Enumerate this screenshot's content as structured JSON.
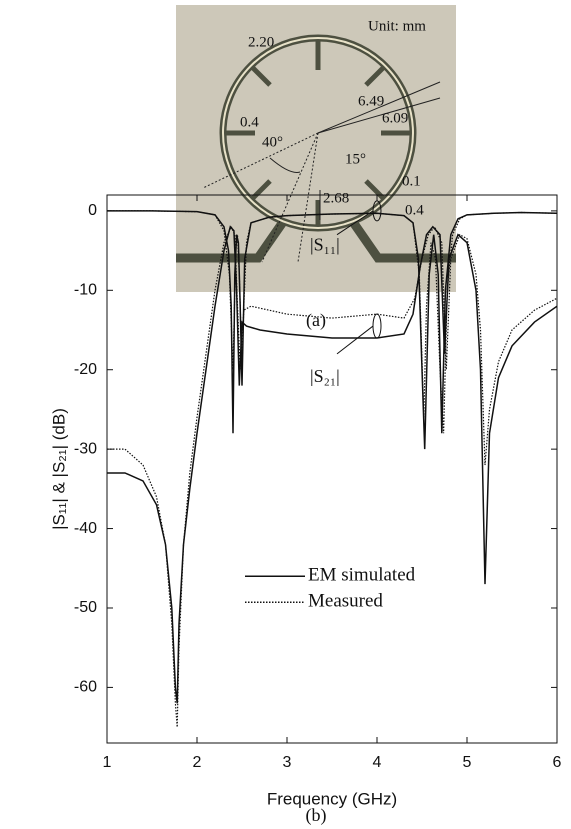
{
  "panel_a": {
    "unit": "Unit: mm",
    "labels": [
      "2.20",
      "0.4",
      "6.49",
      "6.09",
      "40°",
      "15°",
      "2.68",
      "0.1",
      "0.4"
    ],
    "caption": "(a)"
  },
  "chart_data": {
    "type": "line",
    "xlabel": "Frequency (GHz)",
    "ylabel": "|S₁₁| & |S₂₁| (dB)",
    "xlim": [
      1,
      6
    ],
    "ylim": [
      -67,
      2
    ],
    "xticks": [
      1,
      2,
      3,
      4,
      5,
      6
    ],
    "yticks": [
      0,
      -10,
      -20,
      -30,
      -40,
      -50,
      -60
    ],
    "legend": [
      {
        "label": "EM simulated",
        "style": "solid"
      },
      {
        "label": "Measured",
        "style": "dotted"
      }
    ],
    "annotations": [
      "|S₁₁|",
      "|S₂₁|"
    ],
    "series": [
      {
        "style": "solid",
        "color": "#111111",
        "x": [
          1,
          1.5,
          2,
          2.2,
          2.3,
          2.35,
          2.38,
          2.4,
          2.42,
          2.44,
          2.46,
          2.48,
          2.5,
          2.53,
          2.6,
          2.8,
          3,
          3.5,
          4,
          4.3,
          4.4,
          4.46,
          4.5,
          4.53,
          4.58,
          4.63,
          4.68,
          4.72,
          4.76,
          4.82,
          4.9,
          5,
          5.3,
          5.6,
          6
        ],
        "values": [
          0,
          0,
          -0.1,
          -0.5,
          -2,
          -5,
          -12,
          -28,
          -8,
          -3,
          -4,
          -12,
          -22,
          -6,
          -1.5,
          -0.8,
          -0.6,
          -0.4,
          -0.3,
          -0.6,
          -1.5,
          -6,
          -20,
          -30,
          -8,
          -3,
          -8,
          -28,
          -10,
          -3,
          -1,
          -0.5,
          -0.3,
          -0.2,
          -0.3
        ]
      },
      {
        "style": "dotted",
        "color": "#111111",
        "x": [
          1,
          1.5,
          2,
          2.2,
          2.3,
          2.36,
          2.4,
          2.43,
          2.45,
          2.47,
          2.5,
          2.52,
          2.55,
          2.6,
          2.8,
          3,
          3.5,
          4,
          4.3,
          4.4,
          4.47,
          4.52,
          4.55,
          4.6,
          4.65,
          4.7,
          4.74,
          4.78,
          4.84,
          4.92,
          5,
          5.3,
          5.6,
          6
        ],
        "values": [
          0,
          0,
          -0.1,
          -0.5,
          -2.5,
          -8,
          -20,
          -5,
          -3,
          -8,
          -20,
          -12,
          -4,
          -1.5,
          -0.8,
          -0.6,
          -0.4,
          -0.3,
          -0.6,
          -1.5,
          -8,
          -26,
          -12,
          -4,
          -6,
          -20,
          -28,
          -10,
          -3,
          -1,
          -0.5,
          -0.3,
          -0.2,
          -0.3
        ]
      },
      {
        "style": "solid",
        "color": "#111111",
        "x": [
          1,
          1.2,
          1.4,
          1.55,
          1.65,
          1.72,
          1.76,
          1.78,
          1.8,
          1.85,
          1.92,
          2.0,
          2.1,
          2.2,
          2.3,
          2.37,
          2.41,
          2.44,
          2.47,
          2.5,
          2.55,
          2.7,
          3,
          3.5,
          4,
          4.3,
          4.4,
          4.48,
          4.55,
          4.62,
          4.7,
          4.75,
          4.8,
          4.9,
          5.0,
          5.1,
          5.15,
          5.2,
          5.25,
          5.35,
          5.5,
          5.75,
          6
        ],
        "values": [
          -33,
          -33,
          -34,
          -37,
          -42,
          -50,
          -60,
          -62,
          -52,
          -42,
          -35,
          -28,
          -20,
          -12,
          -5,
          -2,
          -2.5,
          -10,
          -22,
          -14,
          -14.5,
          -15,
          -15.5,
          -16,
          -16,
          -15.5,
          -13,
          -7,
          -3,
          -2,
          -3,
          -18,
          -6,
          -3,
          -4,
          -10,
          -20,
          -47,
          -28,
          -21,
          -17,
          -14,
          -12
        ]
      },
      {
        "style": "dotted",
        "color": "#111111",
        "x": [
          1,
          1.2,
          1.4,
          1.55,
          1.65,
          1.72,
          1.76,
          1.78,
          1.8,
          1.85,
          1.92,
          2.0,
          2.1,
          2.2,
          2.3,
          2.38,
          2.42,
          2.45,
          2.48,
          2.52,
          2.6,
          2.8,
          3,
          3.5,
          4,
          4.3,
          4.42,
          4.5,
          4.57,
          4.64,
          4.72,
          4.77,
          4.82,
          4.92,
          5.0,
          5.1,
          5.15,
          5.2,
          5.25,
          5.35,
          5.5,
          5.75,
          6
        ],
        "values": [
          -30,
          -30,
          -32,
          -36,
          -42,
          -52,
          -62,
          -65,
          -55,
          -42,
          -33,
          -26,
          -18,
          -10,
          -4,
          -2,
          -3,
          -12,
          -20,
          -12.5,
          -12,
          -12.5,
          -13,
          -13.5,
          -13,
          -13.5,
          -11,
          -6,
          -3,
          -2,
          -4,
          -20,
          -6,
          -3,
          -3.5,
          -8,
          -15,
          -32,
          -25,
          -19,
          -15,
          -12.5,
          -11
        ]
      }
    ],
    "caption": "(b)"
  }
}
